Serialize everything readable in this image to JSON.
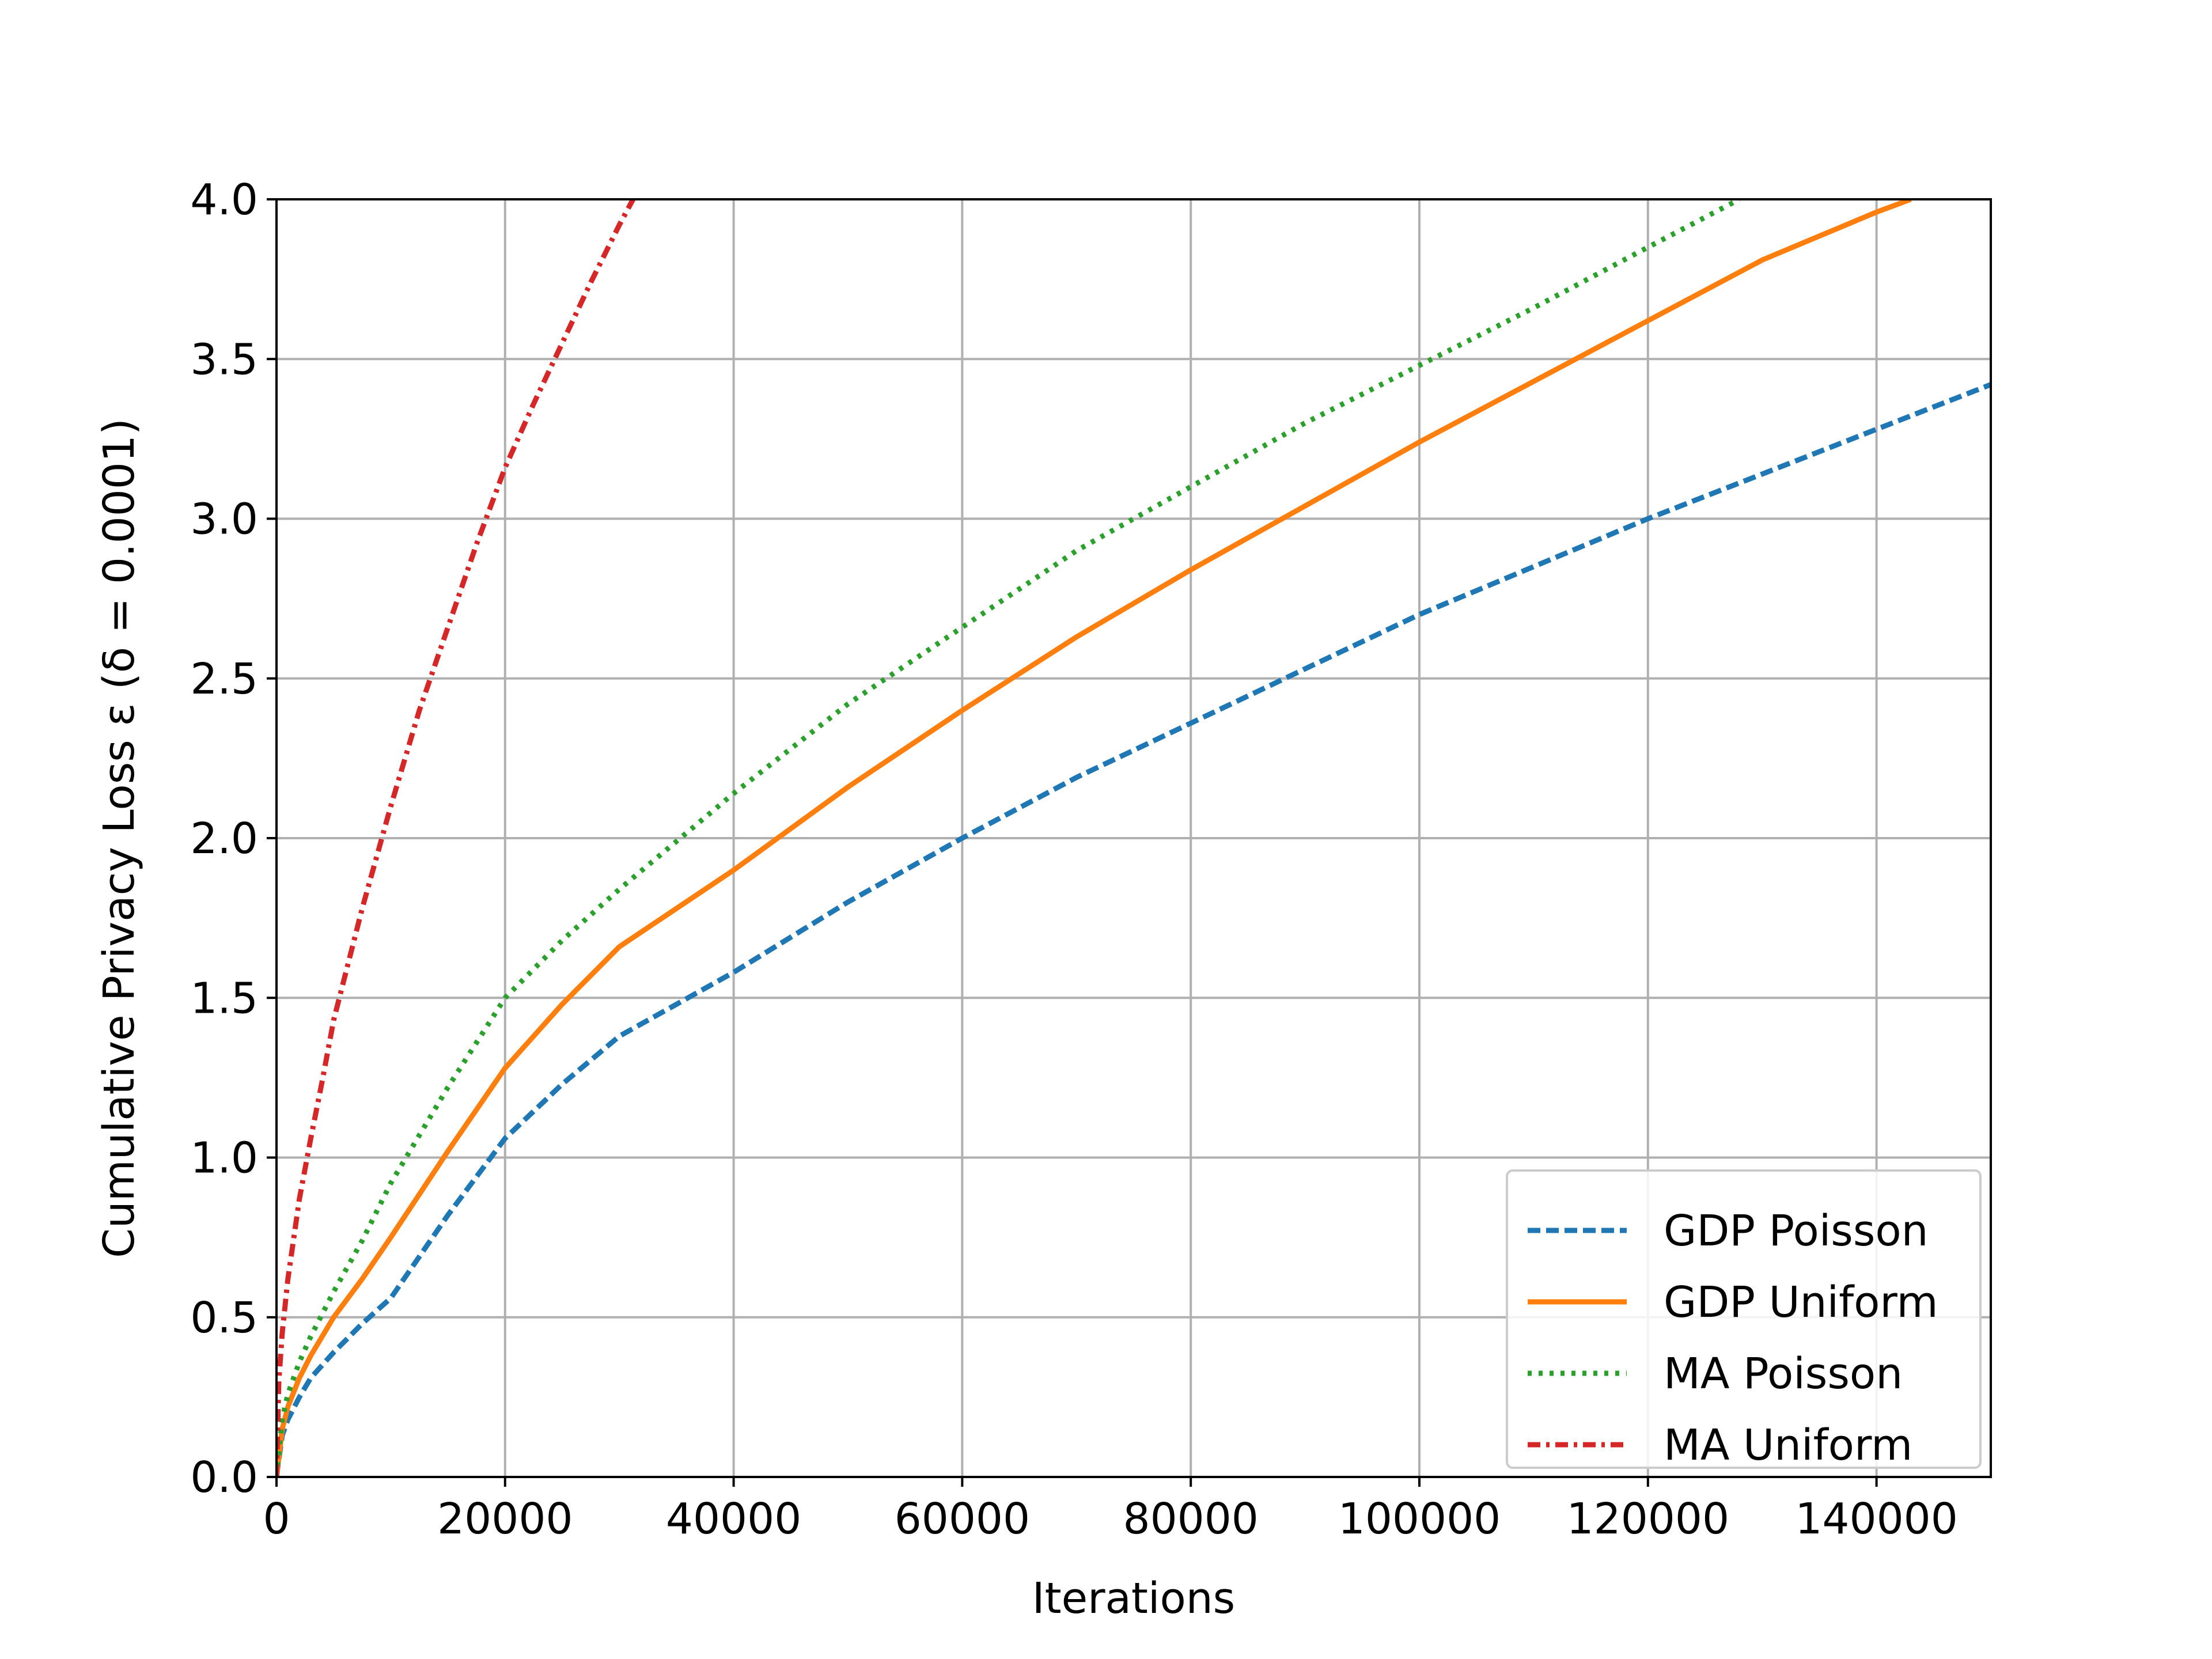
{
  "chart_data": {
    "type": "line",
    "title": "",
    "xlabel": "Iterations",
    "ylabel": "Cumulative Privacy Loss ε (δ = 0.0001)",
    "xlim": [
      0,
      150000
    ],
    "ylim": [
      0,
      4.0
    ],
    "xticks": [
      0,
      20000,
      40000,
      60000,
      80000,
      100000,
      120000,
      140000
    ],
    "xtick_labels": [
      "0",
      "20000",
      "40000",
      "60000",
      "80000",
      "100000",
      "120000",
      "140000"
    ],
    "yticks": [
      0,
      0.5,
      1.0,
      1.5,
      2.0,
      2.5,
      3.0,
      3.5,
      4.0
    ],
    "ytick_labels": [
      "0.0",
      "0.5",
      "1.0",
      "1.5",
      "2.0",
      "2.5",
      "3.0",
      "3.5",
      "4.0"
    ],
    "grid": true,
    "legend_position": "lower-right",
    "series": [
      {
        "name": "GDP Poisson",
        "color": "#1f77b4",
        "style": "dashed",
        "x": [
          0,
          500,
          1000,
          2000,
          3000,
          5000,
          7500,
          10000,
          15000,
          20000,
          25000,
          30000,
          40000,
          50000,
          60000,
          70000,
          80000,
          90000,
          100000,
          110000,
          120000,
          130000,
          140000,
          150000
        ],
        "y": [
          0,
          0.13,
          0.18,
          0.25,
          0.31,
          0.39,
          0.48,
          0.56,
          0.82,
          1.06,
          1.23,
          1.38,
          1.58,
          1.8,
          2.0,
          2.19,
          2.36,
          2.53,
          2.7,
          2.85,
          3.0,
          3.14,
          3.28,
          3.42
        ]
      },
      {
        "name": "GDP Uniform",
        "color": "#ff7f0e",
        "style": "solid",
        "x": [
          0,
          500,
          1000,
          2000,
          3000,
          5000,
          7500,
          10000,
          15000,
          20000,
          25000,
          30000,
          40000,
          50000,
          60000,
          70000,
          80000,
          90000,
          100000,
          110000,
          120000,
          130000,
          140000,
          143000
        ],
        "y": [
          0,
          0.15,
          0.22,
          0.31,
          0.38,
          0.5,
          0.62,
          0.75,
          1.02,
          1.28,
          1.48,
          1.66,
          1.9,
          2.16,
          2.4,
          2.63,
          2.84,
          3.04,
          3.24,
          3.43,
          3.62,
          3.81,
          3.96,
          4.0
        ]
      },
      {
        "name": "MA Poisson",
        "color": "#2ca02c",
        "style": "dotted",
        "x": [
          0,
          500,
          1000,
          2000,
          3000,
          5000,
          7500,
          10000,
          15000,
          20000,
          25000,
          30000,
          40000,
          50000,
          60000,
          70000,
          80000,
          90000,
          100000,
          110000,
          120000,
          128000
        ],
        "y": [
          0,
          0.18,
          0.26,
          0.36,
          0.44,
          0.58,
          0.74,
          0.92,
          1.22,
          1.5,
          1.68,
          1.84,
          2.14,
          2.42,
          2.66,
          2.9,
          3.1,
          3.3,
          3.48,
          3.66,
          3.85,
          4.0
        ]
      },
      {
        "name": "MA Uniform",
        "color": "#d62728",
        "style": "dashdot",
        "x": [
          0,
          200,
          500,
          1000,
          2000,
          3000,
          4000,
          5000,
          7500,
          10000,
          12500,
          15000,
          17500,
          20000,
          22500,
          25000,
          27500,
          30000,
          31200
        ],
        "y": [
          0,
          0.3,
          0.45,
          0.62,
          0.87,
          1.06,
          1.24,
          1.43,
          1.78,
          2.1,
          2.4,
          2.66,
          2.92,
          3.16,
          3.36,
          3.55,
          3.74,
          3.92,
          4.0
        ]
      }
    ]
  }
}
